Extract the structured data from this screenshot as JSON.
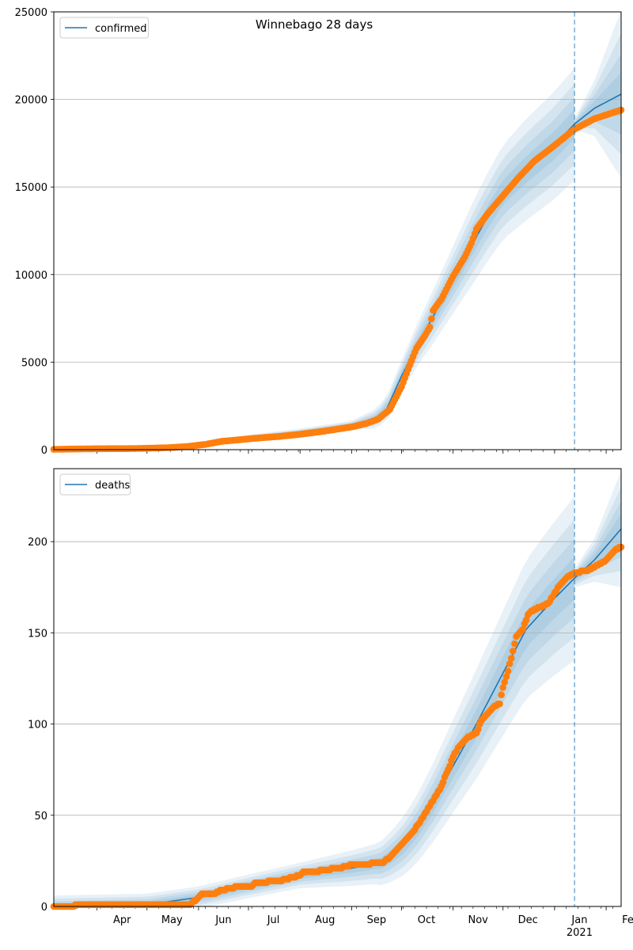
{
  "figure": {
    "title": "Winnebago 28 days"
  },
  "chart_data": [
    {
      "type": "line",
      "title": "Winnebago 28 days",
      "xlabel": "",
      "ylabel": "",
      "x_start": "2020-03-06",
      "x_end": "2021-02-10",
      "ylim": [
        0,
        25000
      ],
      "yticks": [
        0,
        5000,
        10000,
        15000,
        20000,
        25000
      ],
      "ytick_labels": [
        "0",
        "5000",
        "10000",
        "15000",
        "20000",
        "25000"
      ],
      "xticks": [
        {
          "date": "2020-04-01",
          "label": "Apr"
        },
        {
          "date": "2020-05-01",
          "label": "May"
        },
        {
          "date": "2020-06-01",
          "label": "Jun"
        },
        {
          "date": "2020-07-01",
          "label": "Jul"
        },
        {
          "date": "2020-08-01",
          "label": "Aug"
        },
        {
          "date": "2020-09-01",
          "label": "Sep"
        },
        {
          "date": "2020-10-01",
          "label": "Oct"
        },
        {
          "date": "2020-11-01",
          "label": "Nov"
        },
        {
          "date": "2020-12-01",
          "label": "Dec"
        },
        {
          "date": "2021-01-01",
          "label": "Jan"
        },
        {
          "date": "2021-02-01",
          "label": "Feb"
        }
      ],
      "xtick_year_label": "2021",
      "grid": "horizontal",
      "legend": {
        "position": "top-left",
        "entries": [
          "confirmed"
        ]
      },
      "forecast_start": "2021-01-13",
      "series": [
        {
          "name": "confirmed",
          "role": "model",
          "color": "#1f77b4",
          "points": [
            [
              "2020-03-06",
              0
            ],
            [
              "2020-04-01",
              60
            ],
            [
              "2020-05-01",
              120
            ],
            [
              "2020-05-25",
              250
            ],
            [
              "2020-06-10",
              450
            ],
            [
              "2020-07-01",
              700
            ],
            [
              "2020-08-01",
              1000
            ],
            [
              "2020-09-01",
              1400
            ],
            [
              "2020-09-15",
              1750
            ],
            [
              "2020-09-22",
              2300
            ],
            [
              "2020-10-01",
              4200
            ],
            [
              "2020-10-10",
              5900
            ],
            [
              "2020-10-20",
              7600
            ],
            [
              "2020-11-01",
              9700
            ],
            [
              "2020-11-10",
              11300
            ],
            [
              "2020-11-20",
              13000
            ],
            [
              "2020-12-01",
              14700
            ],
            [
              "2020-12-15",
              16000
            ],
            [
              "2020-12-31",
              17300
            ],
            [
              "2021-01-13",
              18600
            ],
            [
              "2021-01-25",
              19500
            ],
            [
              "2021-02-10",
              20300
            ]
          ],
          "bands_half_width": [
            [
              "2020-03-06",
              30
            ],
            [
              "2020-06-01",
              100
            ],
            [
              "2020-09-01",
              250
            ],
            [
              "2020-10-01",
              900
            ],
            [
              "2020-10-25",
              1700
            ],
            [
              "2020-11-15",
              2400
            ],
            [
              "2020-12-01",
              2700
            ],
            [
              "2020-12-15",
              2900
            ],
            [
              "2021-01-13",
              3200
            ]
          ],
          "forecast_bands_half_width": [
            [
              "2021-01-13",
              300
            ],
            [
              "2021-01-25",
              1600
            ],
            [
              "2021-02-10",
              4800
            ]
          ]
        },
        {
          "name": "",
          "role": "observed",
          "color": "#ff7f0e",
          "points": [
            [
              "2020-03-06",
              20
            ],
            [
              "2020-03-20",
              40
            ],
            [
              "2020-04-01",
              55
            ],
            [
              "2020-04-20",
              60
            ],
            [
              "2020-05-01",
              80
            ],
            [
              "2020-05-15",
              120
            ],
            [
              "2020-05-25",
              180
            ],
            [
              "2020-06-05",
              300
            ],
            [
              "2020-06-15",
              480
            ],
            [
              "2020-06-25",
              560
            ],
            [
              "2020-07-05",
              650
            ],
            [
              "2020-07-20",
              760
            ],
            [
              "2020-08-01",
              880
            ],
            [
              "2020-08-15",
              1050
            ],
            [
              "2020-09-01",
              1300
            ],
            [
              "2020-09-10",
              1500
            ],
            [
              "2020-09-17",
              1750
            ],
            [
              "2020-09-24",
              2300
            ],
            [
              "2020-10-01",
              3600
            ],
            [
              "2020-10-05",
              4600
            ],
            [
              "2020-10-10",
              5800
            ],
            [
              "2020-10-15",
              6500
            ],
            [
              "2020-10-18",
              7000
            ],
            [
              "2020-10-20",
              7950
            ],
            [
              "2020-10-25",
              8600
            ],
            [
              "2020-11-01",
              9900
            ],
            [
              "2020-11-08",
              11000
            ],
            [
              "2020-11-12",
              11800
            ],
            [
              "2020-11-15",
              12600
            ],
            [
              "2020-11-22",
              13500
            ],
            [
              "2020-12-01",
              14500
            ],
            [
              "2020-12-10",
              15500
            ],
            [
              "2020-12-20",
              16500
            ],
            [
              "2020-12-31",
              17300
            ],
            [
              "2021-01-13",
              18300
            ],
            [
              "2021-01-25",
              18900
            ],
            [
              "2021-02-10",
              19400
            ]
          ]
        }
      ]
    },
    {
      "type": "line",
      "title": "",
      "xlabel": "",
      "ylabel": "",
      "x_start": "2020-03-06",
      "x_end": "2021-02-10",
      "ylim": [
        0,
        240
      ],
      "yticks": [
        0,
        50,
        100,
        150,
        200
      ],
      "ytick_labels": [
        "0",
        "50",
        "100",
        "150",
        "200"
      ],
      "grid": "horizontal",
      "legend": {
        "position": "top-left",
        "entries": [
          "deaths"
        ]
      },
      "forecast_start": "2021-01-13",
      "series": [
        {
          "name": "deaths",
          "role": "model",
          "color": "#1f77b4",
          "points": [
            [
              "2020-03-06",
              0
            ],
            [
              "2020-05-01",
              1
            ],
            [
              "2020-06-01",
              5
            ],
            [
              "2020-07-01",
              11
            ],
            [
              "2020-08-01",
              17
            ],
            [
              "2020-09-01",
              21
            ],
            [
              "2020-09-20",
              24
            ],
            [
              "2020-10-01",
              32
            ],
            [
              "2020-10-10",
              42
            ],
            [
              "2020-10-20",
              57
            ],
            [
              "2020-11-01",
              77
            ],
            [
              "2020-11-15",
              100
            ],
            [
              "2020-12-01",
              128
            ],
            [
              "2020-12-15",
              152
            ],
            [
              "2020-12-31",
              168
            ],
            [
              "2021-01-13",
              180
            ],
            [
              "2021-01-25",
              190
            ],
            [
              "2021-02-10",
              207
            ]
          ],
          "bands_half_width": [
            [
              "2020-03-06",
              6
            ],
            [
              "2020-06-01",
              6
            ],
            [
              "2020-08-01",
              7
            ],
            [
              "2020-09-15",
              11
            ],
            [
              "2020-10-15",
              20
            ],
            [
              "2020-11-15",
              30
            ],
            [
              "2020-12-15",
              38
            ],
            [
              "2021-01-13",
              45
            ]
          ],
          "forecast_bands_half_width": [
            [
              "2021-01-13",
              5
            ],
            [
              "2021-01-25",
              12
            ],
            [
              "2021-02-10",
              32
            ]
          ]
        },
        {
          "name": "",
          "role": "observed",
          "color": "#ff7f0e",
          "points": [
            [
              "2020-03-06",
              0
            ],
            [
              "2020-04-01",
              1
            ],
            [
              "2020-05-27",
              1
            ],
            [
              "2020-05-31",
              4
            ],
            [
              "2020-06-03",
              7
            ],
            [
              "2020-06-10",
              7
            ],
            [
              "2020-06-15",
              9
            ],
            [
              "2020-06-25",
              11
            ],
            [
              "2020-07-03",
              11
            ],
            [
              "2020-07-05",
              13
            ],
            [
              "2020-07-20",
              14
            ],
            [
              "2020-07-28",
              16
            ],
            [
              "2020-08-01",
              17
            ],
            [
              "2020-08-03",
              19
            ],
            [
              "2020-08-10",
              19
            ],
            [
              "2020-08-15",
              20
            ],
            [
              "2020-08-25",
              21
            ],
            [
              "2020-09-01",
              23
            ],
            [
              "2020-09-10",
              23
            ],
            [
              "2020-09-15",
              24
            ],
            [
              "2020-09-20",
              24
            ],
            [
              "2020-09-25",
              28
            ],
            [
              "2020-10-01",
              34
            ],
            [
              "2020-10-07",
              40
            ],
            [
              "2020-10-12",
              46
            ],
            [
              "2020-10-15",
              51
            ],
            [
              "2020-10-20",
              58
            ],
            [
              "2020-10-25",
              66
            ],
            [
              "2020-11-01",
              82
            ],
            [
              "2020-11-05",
              88
            ],
            [
              "2020-11-10",
              93
            ],
            [
              "2020-11-15",
              95
            ],
            [
              "2020-11-18",
              102
            ],
            [
              "2020-11-21",
              105
            ],
            [
              "2020-11-25",
              109
            ],
            [
              "2020-11-29",
              111
            ],
            [
              "2020-12-01",
              120
            ],
            [
              "2020-12-03",
              126
            ],
            [
              "2020-12-06",
              136
            ],
            [
              "2020-12-09",
              148
            ],
            [
              "2020-12-13",
              152
            ],
            [
              "2020-12-16",
              160
            ],
            [
              "2020-12-20",
              163
            ],
            [
              "2020-12-24",
              164
            ],
            [
              "2020-12-28",
              166
            ],
            [
              "2020-12-31",
              170
            ],
            [
              "2021-01-03",
              175
            ],
            [
              "2021-01-08",
              180
            ],
            [
              "2021-01-13",
              183
            ],
            [
              "2021-01-20",
              184
            ],
            [
              "2021-01-25",
              186
            ],
            [
              "2021-02-01",
              190
            ],
            [
              "2021-02-06",
              195
            ],
            [
              "2021-02-10",
              197
            ]
          ]
        }
      ]
    }
  ]
}
